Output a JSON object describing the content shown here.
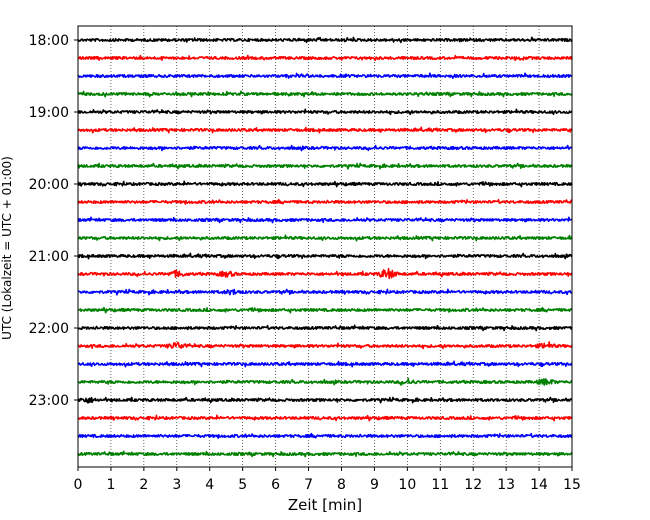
{
  "chart_data": {
    "type": "line",
    "title": "",
    "xlabel": "Zeit  [min]",
    "ylabel": "UTC (Lokalzeit = UTC + 01:00)",
    "xlim": [
      0,
      15
    ],
    "x_ticks": [
      "0",
      "1",
      "2",
      "3",
      "4",
      "5",
      "6",
      "7",
      "8",
      "9",
      "10",
      "11",
      "12",
      "13",
      "14",
      "15"
    ],
    "y_ticks": [
      "18:00",
      "19:00",
      "20:00",
      "21:00",
      "22:00",
      "23:00"
    ],
    "grid": "vertical-dotted",
    "trace_colors": [
      "#000000",
      "#ff0000",
      "#0000ff",
      "#008000"
    ],
    "traces": [
      {
        "start": "18:00",
        "color": "#000000"
      },
      {
        "start": "18:15",
        "color": "#ff0000"
      },
      {
        "start": "18:30",
        "color": "#0000ff"
      },
      {
        "start": "18:45",
        "color": "#008000"
      },
      {
        "start": "19:00",
        "color": "#000000"
      },
      {
        "start": "19:15",
        "color": "#ff0000"
      },
      {
        "start": "19:30",
        "color": "#0000ff"
      },
      {
        "start": "19:45",
        "color": "#008000"
      },
      {
        "start": "20:00",
        "color": "#000000"
      },
      {
        "start": "20:15",
        "color": "#ff0000"
      },
      {
        "start": "20:30",
        "color": "#0000ff"
      },
      {
        "start": "20:45",
        "color": "#008000"
      },
      {
        "start": "21:00",
        "color": "#000000"
      },
      {
        "start": "21:15",
        "color": "#ff0000",
        "events": [
          [
            3.0,
            2.5
          ],
          [
            4.5,
            2.0
          ],
          [
            9.4,
            4.5
          ]
        ]
      },
      {
        "start": "21:30",
        "color": "#0000ff",
        "events": [
          [
            4.7,
            1.8
          ]
        ]
      },
      {
        "start": "21:45",
        "color": "#008000"
      },
      {
        "start": "22:00",
        "color": "#000000"
      },
      {
        "start": "22:15",
        "color": "#ff0000",
        "events": [
          [
            3.0,
            3.0
          ],
          [
            14.2,
            2.0
          ]
        ]
      },
      {
        "start": "22:30",
        "color": "#0000ff"
      },
      {
        "start": "22:45",
        "color": "#008000",
        "events": [
          [
            14.2,
            2.5
          ],
          [
            10.0,
            1.5
          ]
        ]
      },
      {
        "start": "23:00",
        "color": "#000000",
        "events": [
          [
            0.3,
            2.0
          ]
        ]
      },
      {
        "start": "23:15",
        "color": "#ff0000"
      },
      {
        "start": "23:30",
        "color": "#0000ff"
      },
      {
        "start": "23:45",
        "color": "#008000"
      }
    ]
  }
}
